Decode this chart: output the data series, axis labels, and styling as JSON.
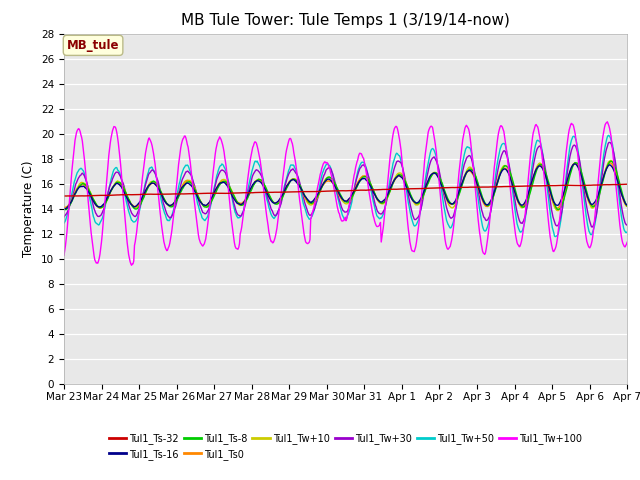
{
  "title": "MB Tule Tower: Tule Temps 1 (3/19/14-now)",
  "ylabel": "Temperature (C)",
  "ylim": [
    0,
    28
  ],
  "yticks": [
    0,
    2,
    4,
    6,
    8,
    10,
    12,
    14,
    16,
    18,
    20,
    22,
    24,
    26,
    28
  ],
  "bg_color": "#e8e8e8",
  "annotation_label": "MB_tule",
  "annotation_color": "#8b0000",
  "annotation_bg": "#ffffdd",
  "series": [
    {
      "label": "Tul1_Ts-32",
      "color": "#cc0000",
      "lw": 1.0
    },
    {
      "label": "Tul1_Ts-16",
      "color": "#00008b",
      "lw": 1.0
    },
    {
      "label": "Tul1_Ts-8",
      "color": "#00cc00",
      "lw": 1.0
    },
    {
      "label": "Tul1_Ts0",
      "color": "#ff8800",
      "lw": 1.0
    },
    {
      "label": "Tul1_Tw+10",
      "color": "#cccc00",
      "lw": 1.0
    },
    {
      "label": "Tul1_Tw+30",
      "color": "#9900cc",
      "lw": 1.0
    },
    {
      "label": "Tul1_Tw+50",
      "color": "#00cccc",
      "lw": 1.0
    },
    {
      "label": "Tul1_Tw+100",
      "color": "#ff00ff",
      "lw": 1.0
    }
  ],
  "date_labels": [
    "Mar 23",
    "Mar 24",
    "Mar 25",
    "Mar 26",
    "Mar 27",
    "Mar 28",
    "Mar 29",
    "Mar 30",
    "Mar 31",
    "Apr 1",
    "Apr 2",
    "Apr 3",
    "Apr 4",
    "Apr 5",
    "Apr 6",
    "Apr 7"
  ],
  "n_days": 16,
  "pts_per_day": 48,
  "title_fontsize": 11,
  "tick_fontsize": 7.5,
  "label_fontsize": 8.5
}
